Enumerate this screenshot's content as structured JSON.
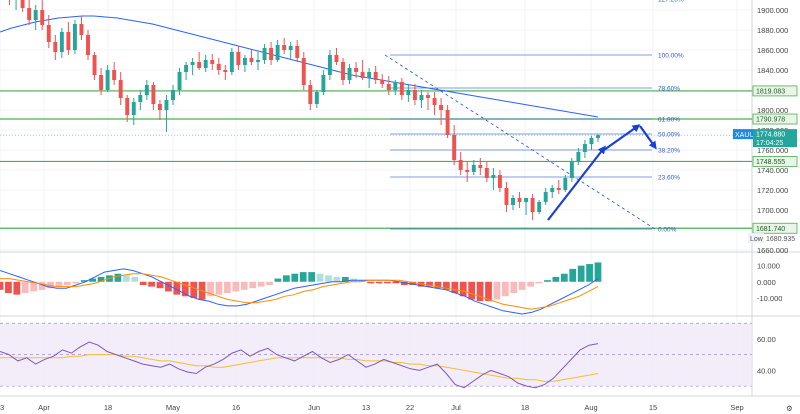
{
  "colors": {
    "bull": "#26a69a",
    "bear": "#ef5350",
    "hist_bull": "#26a69a",
    "hist_bull_light": "#b2dfdb",
    "hist_bear": "#ef5350",
    "hist_bear_light": "#f8bbbb",
    "ma": "#2962ff",
    "sr": "#4caf50",
    "fib": "#2f5bd6",
    "arrow": "#1a3fd6",
    "macd": "#2962ff",
    "signal": "#ff8c00",
    "rsi": "#7e57c2",
    "rsi_ma": "#f2c12e",
    "rsi_band": "#ede7f6",
    "label_sr_bg": "#eaf5ea",
    "price_tag_bg": "#1e88e5"
  },
  "chart_data": [
    {
      "type": "candlestick",
      "symbol": "XAUUSD",
      "ylim": [
        1660,
        1910
      ],
      "y_ticks": [
        1660,
        1680,
        1700,
        1720,
        1740,
        1760,
        1780,
        1800,
        1820,
        1840,
        1860,
        1880,
        1900
      ],
      "y_tick_labels": [
        "1660.000",
        "1680.000",
        "1700.000",
        "1720.000",
        "1740.000",
        "1760.000",
        "1780.000",
        "1800.000",
        "1820.000",
        "1840.000",
        "1860.000",
        "1880.000",
        "1900.000"
      ],
      "x_tick_labels": [
        "3",
        "Apr",
        "18",
        "May",
        "16",
        "Jun",
        "13",
        "22",
        "Jul",
        "18",
        "Aug",
        "15",
        "Sep"
      ],
      "candles_ohlc": [
        [
          1925,
          1930,
          1915,
          1918
        ],
        [
          1918,
          1924,
          1905,
          1910
        ],
        [
          1910,
          1920,
          1900,
          1915
        ],
        [
          1915,
          1922,
          1898,
          1902
        ],
        [
          1902,
          1912,
          1885,
          1890
        ],
        [
          1890,
          1905,
          1880,
          1900
        ],
        [
          1900,
          1910,
          1880,
          1885
        ],
        [
          1885,
          1895,
          1862,
          1868
        ],
        [
          1868,
          1875,
          1850,
          1858
        ],
        [
          1858,
          1882,
          1852,
          1878
        ],
        [
          1878,
          1888,
          1855,
          1860
        ],
        [
          1860,
          1890,
          1856,
          1886
        ],
        [
          1886,
          1894,
          1870,
          1875
        ],
        [
          1875,
          1880,
          1850,
          1855
        ],
        [
          1855,
          1858,
          1830,
          1835
        ],
        [
          1835,
          1842,
          1815,
          1820
        ],
        [
          1820,
          1845,
          1818,
          1840
        ],
        [
          1840,
          1848,
          1825,
          1830
        ],
        [
          1830,
          1838,
          1805,
          1812
        ],
        [
          1812,
          1815,
          1788,
          1795
        ],
        [
          1795,
          1812,
          1785,
          1808
        ],
        [
          1808,
          1820,
          1800,
          1815
        ],
        [
          1815,
          1830,
          1810,
          1825
        ],
        [
          1825,
          1828,
          1800,
          1806
        ],
        [
          1806,
          1810,
          1790,
          1800
        ],
        [
          1800,
          1815,
          1778,
          1810
        ],
        [
          1810,
          1825,
          1805,
          1820
        ],
        [
          1820,
          1842,
          1815,
          1838
        ],
        [
          1838,
          1848,
          1830,
          1845
        ],
        [
          1845,
          1852,
          1835,
          1848
        ],
        [
          1848,
          1858,
          1840,
          1842
        ],
        [
          1842,
          1855,
          1838,
          1850
        ],
        [
          1850,
          1856,
          1840,
          1846
        ],
        [
          1846,
          1852,
          1835,
          1840
        ],
        [
          1840,
          1845,
          1830,
          1838
        ],
        [
          1838,
          1862,
          1835,
          1858
        ],
        [
          1858,
          1864,
          1840,
          1845
        ],
        [
          1845,
          1855,
          1838,
          1852
        ],
        [
          1852,
          1860,
          1845,
          1848
        ],
        [
          1848,
          1858,
          1840,
          1850
        ],
        [
          1850,
          1866,
          1846,
          1862
        ],
        [
          1862,
          1868,
          1845,
          1850
        ],
        [
          1850,
          1870,
          1848,
          1865
        ],
        [
          1865,
          1872,
          1856,
          1860
        ],
        [
          1860,
          1868,
          1850,
          1864
        ],
        [
          1864,
          1870,
          1848,
          1852
        ],
        [
          1852,
          1858,
          1820,
          1825
        ],
        [
          1825,
          1830,
          1800,
          1806
        ],
        [
          1806,
          1820,
          1802,
          1818
        ],
        [
          1818,
          1840,
          1815,
          1835
        ],
        [
          1835,
          1860,
          1830,
          1855
        ],
        [
          1855,
          1862,
          1845,
          1848
        ],
        [
          1848,
          1852,
          1825,
          1830
        ],
        [
          1830,
          1846,
          1826,
          1842
        ],
        [
          1842,
          1848,
          1832,
          1838
        ],
        [
          1838,
          1850,
          1830,
          1832
        ],
        [
          1832,
          1842,
          1822,
          1838
        ],
        [
          1838,
          1844,
          1826,
          1830
        ],
        [
          1830,
          1836,
          1822,
          1826
        ],
        [
          1826,
          1834,
          1815,
          1820
        ],
        [
          1820,
          1830,
          1815,
          1828
        ],
        [
          1828,
          1832,
          1810,
          1815
        ],
        [
          1815,
          1825,
          1808,
          1820
        ],
        [
          1820,
          1826,
          1805,
          1810
        ],
        [
          1810,
          1820,
          1802,
          1815
        ],
        [
          1815,
          1818,
          1800,
          1812
        ],
        [
          1812,
          1818,
          1795,
          1805
        ],
        [
          1805,
          1812,
          1785,
          1800
        ],
        [
          1800,
          1805,
          1772,
          1775
        ],
        [
          1775,
          1785,
          1745,
          1750
        ],
        [
          1750,
          1758,
          1735,
          1740
        ],
        [
          1740,
          1748,
          1728,
          1738
        ],
        [
          1738,
          1750,
          1735,
          1745
        ],
        [
          1745,
          1752,
          1735,
          1742
        ],
        [
          1742,
          1748,
          1728,
          1732
        ],
        [
          1732,
          1742,
          1720,
          1735
        ],
        [
          1735,
          1740,
          1718,
          1722
        ],
        [
          1722,
          1728,
          1698,
          1705
        ],
        [
          1705,
          1715,
          1700,
          1712
        ],
        [
          1712,
          1718,
          1702,
          1708
        ],
        [
          1708,
          1712,
          1695,
          1712
        ],
        [
          1712,
          1716,
          1690,
          1698
        ],
        [
          1698,
          1710,
          1696,
          1708
        ],
        [
          1708,
          1722,
          1705,
          1718
        ],
        [
          1718,
          1725,
          1712,
          1722
        ],
        [
          1722,
          1730,
          1716,
          1720
        ],
        [
          1720,
          1735,
          1718,
          1732
        ],
        [
          1732,
          1752,
          1728,
          1748
        ],
        [
          1748,
          1762,
          1745,
          1758
        ],
        [
          1758,
          1770,
          1752,
          1766
        ],
        [
          1766,
          1774,
          1760,
          1772
        ],
        [
          1772,
          1776,
          1768,
          1774.88
        ]
      ],
      "moving_average": [
        1878,
        1882,
        1885,
        1888,
        1890,
        1892,
        1893,
        1894,
        1894,
        1893,
        1892,
        1890,
        1888,
        1886,
        1883,
        1880,
        1877,
        1874,
        1871,
        1868,
        1865,
        1862,
        1859,
        1856,
        1853,
        1850,
        1847,
        1844,
        1841,
        1838,
        1835,
        1833,
        1831,
        1829,
        1827,
        1825,
        1823,
        1821,
        1819,
        1817,
        1815,
        1813,
        1811,
        1809,
        1807,
        1805,
        1803,
        1801,
        1799,
        1797,
        1795,
        1793
      ],
      "support_resistance_lines": [
        1819.083,
        1790.978,
        1748.555,
        1681.74
      ],
      "support_resistance_labels": [
        "1819.083",
        "1790.978",
        "1748.555",
        "1681.740"
      ],
      "fib_levels": [
        {
          "label": "127.20%",
          "value": 1911
        },
        {
          "label": "100.00%",
          "value": 1855
        },
        {
          "label": "78.60%",
          "value": 1822
        },
        {
          "label": "61.80%",
          "value": 1791
        },
        {
          "label": "50.00%",
          "value": 1776
        },
        {
          "label": "38.20%",
          "value": 1760
        },
        {
          "label": "23.60%",
          "value": 1733
        },
        {
          "label": "0.00%",
          "value": 1681
        }
      ],
      "last_price_tag": {
        "symbol": "XAUUSD",
        "price": "1774.880",
        "countdown": "17:04:25",
        "value": 1774.88
      },
      "low_tag": {
        "label": "Low",
        "price": "1680.935",
        "value": 1680.935
      }
    },
    {
      "type": "histogram",
      "name": "MACD",
      "ylim": [
        -20,
        16
      ],
      "y_ticks": [
        10,
        0,
        -10
      ],
      "y_tick_labels": [
        "10.000",
        "0.000",
        "-10.000"
      ],
      "histogram": [
        -5,
        -7,
        -8,
        -7,
        -6,
        -5,
        -4,
        -3,
        -2,
        -1,
        1,
        2,
        3,
        4,
        5,
        4,
        3,
        -2,
        -3,
        -4,
        -6,
        -8,
        -9,
        -10,
        -11,
        -9,
        -8,
        -7,
        -6,
        -5,
        -4,
        -3,
        -2,
        2,
        4,
        5,
        6,
        6,
        5,
        4,
        3,
        3,
        2,
        1,
        -1,
        -1,
        -1,
        -1,
        -2,
        -2,
        -3,
        -3,
        -4,
        -5,
        -7,
        -9,
        -11,
        -12,
        -12,
        -11,
        -9,
        -7,
        -5,
        -3,
        -1,
        1,
        3,
        5,
        8,
        10,
        11,
        12
      ],
      "macd_line": [
        7,
        5,
        3,
        1,
        -1,
        -3,
        -4,
        -4,
        -2,
        0,
        3,
        6,
        7,
        8,
        7,
        5,
        3,
        0,
        -3,
        -6,
        -9,
        -11,
        -12,
        -14,
        -15,
        -15,
        -14,
        -12,
        -10,
        -8,
        -6,
        -4,
        -3,
        -2,
        -1,
        0,
        0,
        1,
        1,
        1,
        1,
        1,
        0,
        -1,
        -2,
        -3,
        -4,
        -5,
        -7,
        -9,
        -12,
        -14,
        -16,
        -18,
        -19,
        -20,
        -19,
        -17,
        -14,
        -11,
        -8,
        -5,
        -2,
        2
      ],
      "signal_line": [
        2,
        2,
        1,
        0,
        -1,
        -2,
        -3,
        -3,
        -3,
        -2,
        -1,
        1,
        3,
        4,
        5,
        5,
        4,
        3,
        1,
        -1,
        -3,
        -5,
        -7,
        -9,
        -11,
        -12,
        -13,
        -13,
        -12,
        -11,
        -9,
        -8,
        -6,
        -5,
        -3,
        -2,
        -1,
        0,
        0,
        1,
        1,
        1,
        1,
        0,
        -1,
        -2,
        -3,
        -4,
        -5,
        -6,
        -8,
        -10,
        -12,
        -14,
        -15,
        -16,
        -17,
        -16,
        -15,
        -13,
        -11,
        -9,
        -6,
        -3
      ]
    },
    {
      "type": "line",
      "name": "RSI",
      "ylim": [
        25,
        72
      ],
      "y_ticks": [
        60,
        40
      ],
      "y_tick_labels": [
        "60.00",
        "40.00"
      ],
      "band": [
        30,
        70
      ],
      "rsi": [
        52,
        50,
        46,
        48,
        44,
        47,
        49,
        53,
        51,
        55,
        58,
        56,
        52,
        50,
        48,
        46,
        44,
        43,
        42,
        44,
        41,
        39,
        38,
        42,
        44,
        47,
        51,
        53,
        49,
        52,
        54,
        50,
        48,
        46,
        49,
        52,
        48,
        45,
        47,
        50,
        46,
        42,
        44,
        47,
        45,
        43,
        41,
        40,
        42,
        44,
        38,
        31,
        29,
        33,
        37,
        40,
        38,
        36,
        32,
        30,
        29,
        31,
        35,
        41,
        47,
        53,
        56,
        57
      ],
      "rsi_ma": [
        48,
        48,
        48,
        48,
        48,
        48,
        48,
        48,
        49,
        49,
        50,
        50,
        50,
        50,
        49,
        49,
        48,
        47,
        46,
        46,
        45,
        44,
        43,
        43,
        42,
        42,
        43,
        44,
        45,
        46,
        47,
        48,
        48,
        48,
        48,
        48,
        48,
        48,
        48,
        47,
        47,
        46,
        46,
        46,
        45,
        45,
        44,
        44,
        43,
        43,
        42,
        41,
        40,
        39,
        38,
        37,
        36,
        35,
        35,
        34,
        34,
        33,
        33,
        34,
        35,
        36,
        37,
        38
      ]
    }
  ]
}
